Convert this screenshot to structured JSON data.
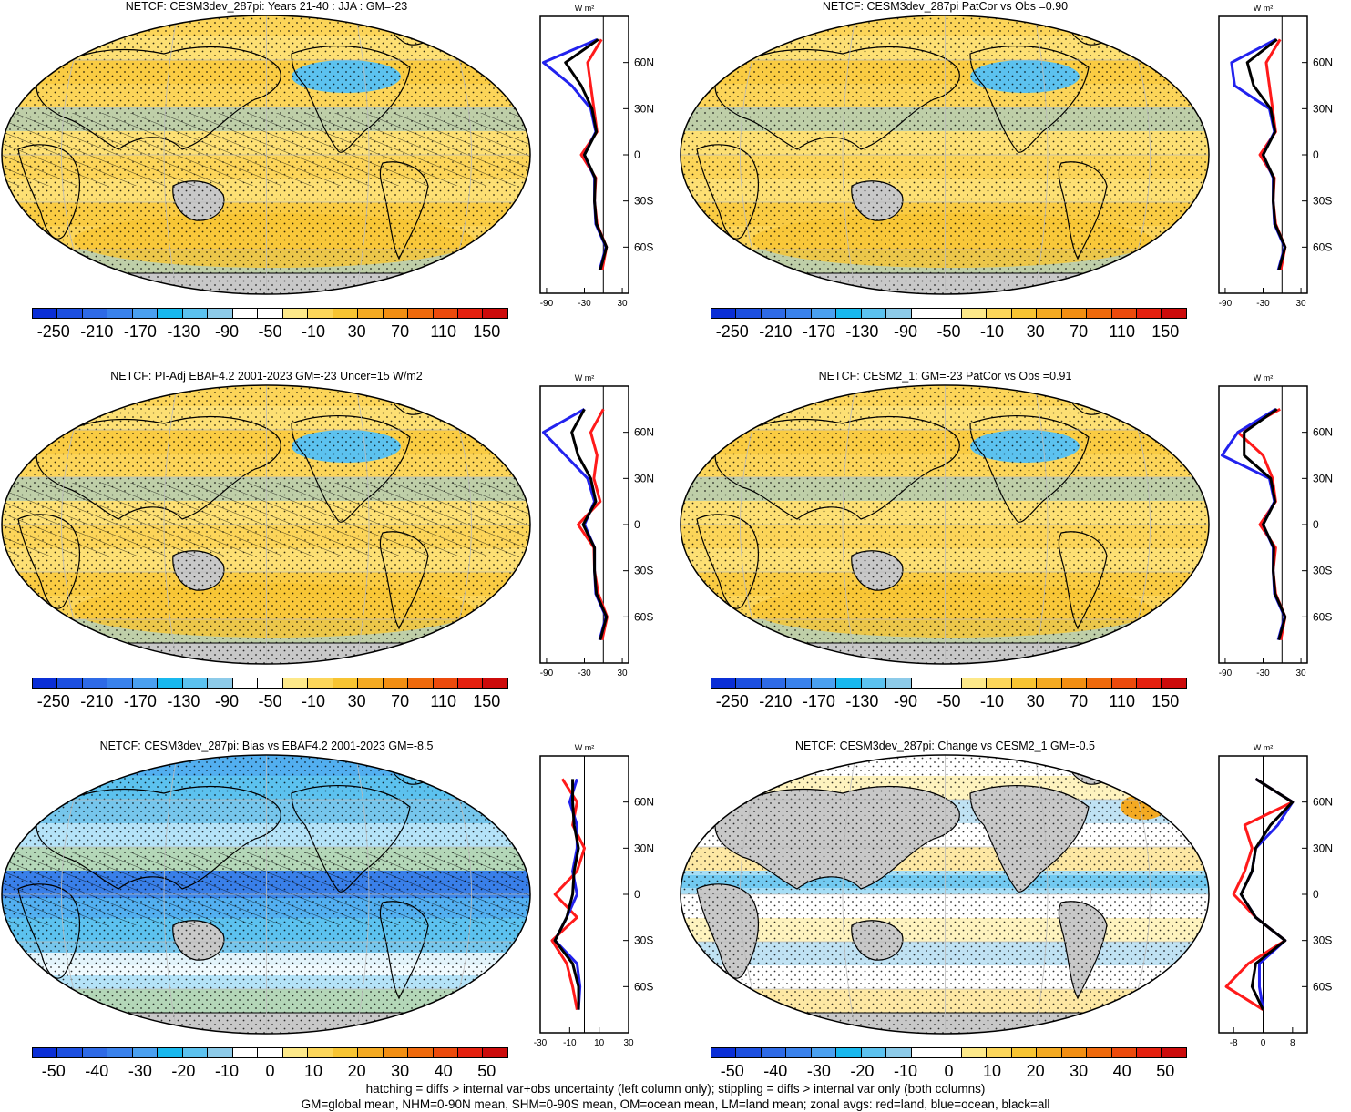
{
  "colors": {
    "cbar_standard": [
      "#0a2ed6",
      "#1c4fe0",
      "#2e6ae6",
      "#3a82ec",
      "#4aa0f0",
      "#18b8ee",
      "#5cc2ef",
      "#8dcbe9",
      "#ffffff",
      "#ffffff",
      "#fde98a",
      "#fcd65a",
      "#f7c432",
      "#f4aa22",
      "#f28e12",
      "#ef6a0c",
      "#ec4a0c",
      "#e4200e",
      "#cc0b0b"
    ],
    "land": "#c8c8c8",
    "zonal_land": "#ff1a1a",
    "zonal_ocean": "#2222ee",
    "zonal_all": "#000000"
  },
  "panels": [
    {
      "id": "p1",
      "title": "NETCF: CESM3dev_287pi: Years 21-40 : JJA : GM=-23",
      "cbar_labels": [
        "-250",
        "-210",
        "-170",
        "-130",
        "-90",
        "-50",
        "-10",
        "30",
        "70",
        "110",
        "150"
      ],
      "zonal_xticks": [
        "-90",
        "-30",
        "30"
      ],
      "zonal_unit": "W m²",
      "hatch": true,
      "field": "mean"
    },
    {
      "id": "p2",
      "title": "NETCF: CESM3dev_287pi PatCor vs Obs =0.90",
      "cbar_labels": [
        "-250",
        "-210",
        "-170",
        "-130",
        "-90",
        "-50",
        "-10",
        "30",
        "70",
        "110",
        "150"
      ],
      "zonal_xticks": [
        "-90",
        "-30",
        "30"
      ],
      "zonal_unit": "W m²",
      "hatch": false,
      "field": "mean"
    },
    {
      "id": "p3",
      "title": "NETCF: PI-Adj EBAF4.2 2001-2023 GM=-23 Uncer=15 W/m2",
      "cbar_labels": [
        "-250",
        "-210",
        "-170",
        "-130",
        "-90",
        "-50",
        "-10",
        "30",
        "70",
        "110",
        "150"
      ],
      "zonal_xticks": [
        "-90",
        "-30",
        "30"
      ],
      "zonal_unit": "W m²",
      "hatch": true,
      "field": "mean"
    },
    {
      "id": "p4",
      "title": "NETCF: CESM2_1: GM=-23 PatCor vs Obs =0.91",
      "cbar_labels": [
        "-250",
        "-210",
        "-170",
        "-130",
        "-90",
        "-50",
        "-10",
        "30",
        "70",
        "110",
        "150"
      ],
      "zonal_xticks": [
        "-90",
        "-30",
        "30"
      ],
      "zonal_unit": "W m²",
      "hatch": false,
      "field": "mean"
    },
    {
      "id": "p5",
      "title": "NETCF: CESM3dev_287pi: Bias vs EBAF4.2 2001-2023 GM=-8.5",
      "cbar_labels": [
        "-50",
        "-40",
        "-30",
        "-20",
        "-10",
        "0",
        "10",
        "20",
        "30",
        "40",
        "50"
      ],
      "zonal_xticks": [
        "-30",
        "-10",
        "10",
        "30"
      ],
      "zonal_unit": "W m²",
      "hatch": true,
      "field": "bias"
    },
    {
      "id": "p6",
      "title": "NETCF: CESM3dev_287pi: Change vs CESM2_1 GM=-0.5",
      "cbar_labels": [
        "-50",
        "-40",
        "-30",
        "-20",
        "-10",
        "0",
        "10",
        "20",
        "30",
        "40",
        "50"
      ],
      "zonal_xticks": [
        "-8",
        "0",
        "8"
      ],
      "zonal_unit": "W m²",
      "hatch": false,
      "field": "change"
    }
  ],
  "zonal_yticks": [
    "60N",
    "30N",
    "0",
    "30S",
    "60S"
  ],
  "chart_data": [
    {
      "type": "line",
      "title": "NETCF: CESM3dev_287pi: Years 21-40 : JJA : GM=-23",
      "xlim": [
        -100,
        40
      ],
      "lat": [
        75,
        60,
        45,
        30,
        15,
        0,
        -15,
        -30,
        -45,
        -60,
        -75
      ],
      "series": [
        {
          "name": "red=land",
          "values": [
            -3,
            -25,
            -20,
            -15,
            -10,
            -35,
            -12,
            -14,
            -10,
            5,
            -2
          ]
        },
        {
          "name": "blue=ocean",
          "values": [
            -10,
            -95,
            -50,
            -20,
            -12,
            -30,
            -14,
            -14,
            -12,
            4,
            -6
          ]
        },
        {
          "name": "black=all",
          "values": [
            -8,
            -60,
            -35,
            -18,
            -11,
            -30,
            -13,
            -14,
            -11,
            5,
            -5
          ]
        }
      ]
    },
    {
      "type": "line",
      "title": "NETCF: CESM3dev_287pi PatCor vs Obs =0.90",
      "xlim": [
        -100,
        40
      ],
      "lat": [
        75,
        60,
        45,
        30,
        15,
        0,
        -15,
        -30,
        -45,
        -60,
        -75
      ],
      "series": [
        {
          "name": "red=land",
          "values": [
            -3,
            -25,
            -20,
            -15,
            -10,
            -35,
            -12,
            -14,
            -10,
            5,
            -2
          ]
        },
        {
          "name": "blue=ocean",
          "values": [
            -10,
            -80,
            -75,
            -20,
            -12,
            -30,
            -14,
            -14,
            -12,
            4,
            -6
          ]
        },
        {
          "name": "black=all",
          "values": [
            -8,
            -55,
            -45,
            -18,
            -11,
            -30,
            -13,
            -14,
            -11,
            5,
            -5
          ]
        }
      ]
    },
    {
      "type": "line",
      "title": "NETCF: PI-Adj EBAF4.2 2001-2023 GM=-23 Uncer=15 W/m2",
      "xlim": [
        -100,
        40
      ],
      "lat": [
        75,
        60,
        45,
        30,
        15,
        0,
        -15,
        -30,
        -45,
        -60,
        -75
      ],
      "series": [
        {
          "name": "red=land",
          "values": [
            0,
            -20,
            -10,
            -15,
            -5,
            -40,
            -15,
            -14,
            -8,
            6,
            -2
          ]
        },
        {
          "name": "blue=ocean",
          "values": [
            -30,
            -95,
            -60,
            -25,
            -14,
            -30,
            -14,
            -14,
            -12,
            4,
            -6
          ]
        },
        {
          "name": "black=all",
          "values": [
            -30,
            -50,
            -40,
            -20,
            -12,
            -32,
            -14,
            -14,
            -11,
            5,
            -5
          ]
        }
      ]
    },
    {
      "type": "line",
      "title": "NETCF: CESM2_1: GM=-23 PatCor vs Obs =0.91",
      "xlim": [
        -100,
        40
      ],
      "lat": [
        75,
        60,
        45,
        30,
        15,
        0,
        -15,
        -30,
        -45,
        -60,
        -75
      ],
      "series": [
        {
          "name": "red=land",
          "values": [
            -3,
            -70,
            -30,
            -15,
            -10,
            -35,
            -10,
            -14,
            -10,
            5,
            -2
          ]
        },
        {
          "name": "blue=ocean",
          "values": [
            -10,
            -70,
            -95,
            -20,
            -12,
            -30,
            -14,
            -14,
            -12,
            4,
            -6
          ]
        },
        {
          "name": "black=all",
          "values": [
            -8,
            -60,
            -60,
            -18,
            -11,
            -30,
            -13,
            -14,
            -11,
            5,
            -5
          ]
        }
      ]
    },
    {
      "type": "line",
      "title": "NETCF: CESM3dev_287pi: Bias vs EBAF4.2 2001-2023 GM=-8.5",
      "xlim": [
        -30,
        30
      ],
      "lat": [
        75,
        60,
        45,
        30,
        15,
        0,
        -15,
        -30,
        -45,
        -60,
        -75
      ],
      "series": [
        {
          "name": "red=land",
          "values": [
            -15,
            -5,
            -8,
            0,
            -5,
            -20,
            -5,
            -22,
            -12,
            -8,
            -5
          ]
        },
        {
          "name": "blue=ocean",
          "values": [
            -5,
            -10,
            -5,
            -5,
            -8,
            -5,
            -12,
            -20,
            -5,
            -3,
            -4
          ]
        },
        {
          "name": "black=all",
          "values": [
            -8,
            -8,
            -7,
            -4,
            -7,
            -8,
            -12,
            -20,
            -8,
            -4,
            -4
          ]
        }
      ]
    },
    {
      "type": "line",
      "title": "NETCF: CESM3dev_287pi: Change vs CESM2_1 GM=-0.5",
      "xlim": [
        -12,
        12
      ],
      "lat": [
        75,
        60,
        45,
        30,
        15,
        0,
        -15,
        -30,
        -45,
        -60,
        -75
      ],
      "series": [
        {
          "name": "red=land",
          "values": [
            -2,
            8,
            -5,
            -3,
            -5,
            -8,
            -2,
            6,
            -4,
            -10,
            0
          ]
        },
        {
          "name": "blue=ocean",
          "values": [
            -2,
            8,
            4,
            -2,
            -3,
            -6,
            -2,
            6,
            -1,
            -1,
            0
          ]
        },
        {
          "name": "black=all",
          "values": [
            -2,
            8,
            2,
            -2,
            -3,
            -6,
            -2,
            6,
            -2,
            -3,
            0
          ]
        }
      ]
    }
  ],
  "footer": [
    "hatching = diffs > internal var+obs uncertainty (left column only); stippling = diffs > internal var only (both columns)",
    "GM=global mean, NHM=0-90N mean, SHM=0-90S mean, OM=ocean mean, LM=land mean; zonal avgs: red=land, blue=ocean, black=all"
  ]
}
